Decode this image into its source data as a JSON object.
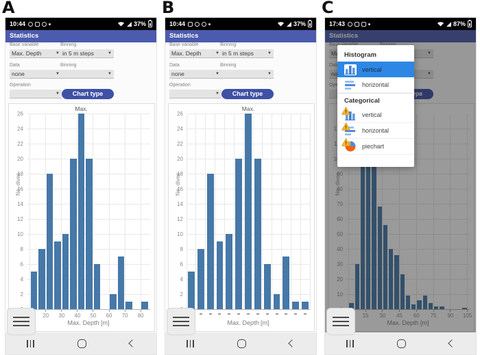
{
  "colors": {
    "header": "#4c5bad",
    "button": "#3f51a5",
    "bar": "#4678a8",
    "popup_highlight": "#2e87e4",
    "statusbar_bg": "#000000",
    "navbar_bg": "#ececec"
  },
  "panels": [
    {
      "letter": "A",
      "status": {
        "time": "10:44",
        "battery": "37%"
      },
      "app_title": "Statistics",
      "form": {
        "base_variable_label": "Base variable",
        "base_variable_value": "Max. Depth",
        "binning1_label": "Binning",
        "binning1_value": "in 5 m steps",
        "data_label": "Data",
        "data_value": "none",
        "binning2_label": "Binning",
        "binning2_value": "",
        "operation_label": "Operation",
        "operation_value": "",
        "chart_type_button": "Chart type"
      }
    },
    {
      "letter": "B",
      "status": {
        "time": "10:44",
        "battery": "37%"
      },
      "app_title": "Statistics",
      "form": {
        "base_variable_label": "Base variable",
        "base_variable_value": "Max. Depth",
        "binning1_label": "Binning",
        "binning1_value": "in 5 m steps",
        "data_label": "Data",
        "data_value": "none",
        "binning2_label": "Binning",
        "binning2_value": "",
        "operation_label": "Operation",
        "operation_value": "",
        "chart_type_button": "Chart type"
      }
    },
    {
      "letter": "C",
      "status": {
        "time": "17:43",
        "battery": "87%"
      },
      "app_title": "Statistics",
      "form": {
        "base_variable_label": "Base variable",
        "base_variable_value": "Max. Depth",
        "binning1_label": "Binning",
        "binning1_value": "",
        "data_label": "Data",
        "data_value": "none",
        "binning2_label": "Binning",
        "binning2_value": "",
        "operation_label": "Operation",
        "operation_value": "",
        "chart_type_button": "Chart type"
      }
    }
  ],
  "chart_data": [
    {
      "type": "bar",
      "mode": "histogram",
      "title": "",
      "xlabel": "Max. Depth [m]",
      "ylabel": "No. dives",
      "bin_start": 10,
      "bin_width": 5,
      "values": [
        5,
        8,
        18,
        9,
        10,
        20,
        26,
        20,
        6,
        0,
        2,
        7,
        1,
        0,
        1
      ],
      "annotation": {
        "text": "Max.",
        "bar_index": 6
      },
      "xticks": [
        10,
        20,
        30,
        40,
        50,
        60,
        70,
        80
      ],
      "yticks_step": 2,
      "yticks_max": 26,
      "ylim": [
        0,
        26
      ],
      "xlim": [
        8,
        86
      ],
      "grid": true,
      "bars_interactable": true
    },
    {
      "type": "bar",
      "mode": "categorical",
      "title": "",
      "xlabel": "Max. Depth [m]",
      "ylabel": "No. dives",
      "values": [
        5,
        8,
        18,
        9,
        10,
        20,
        26,
        20,
        6,
        2,
        7,
        1,
        1
      ],
      "annotation": {
        "text": "Max.",
        "bar_index": 6
      },
      "x_tick_style": "dash",
      "yticks_step": 2,
      "yticks_max": 26,
      "ylim": [
        0,
        26
      ],
      "grid": true,
      "bars_interactable": true
    },
    {
      "type": "bar",
      "mode": "histogram",
      "title": "",
      "xlabel": "Max. Depth [m]",
      "ylabel": "No. dives",
      "bin_start": 0,
      "bin_width": 5,
      "values": [
        4,
        30,
        112,
        128,
        120,
        68,
        56,
        40,
        36,
        23,
        9,
        3,
        6,
        9,
        4,
        2,
        2,
        0,
        0,
        0,
        1
      ],
      "values_note": "tops of 10-25 m bins hidden behind popup; heights estimated (>=94)",
      "xticks": [
        0,
        15,
        30,
        45,
        60,
        75,
        90,
        105
      ],
      "yticks_step": 10,
      "yticks_max": 120,
      "ylim": [
        0,
        130
      ],
      "xlim": [
        -2,
        107
      ],
      "grid": true,
      "dimmed": true,
      "bars_interactable": false
    }
  ],
  "popup": {
    "sections": [
      {
        "title": "Histogram",
        "items": [
          {
            "label": "vertical",
            "icon": "histogram-vertical-icon",
            "selected": true,
            "warning": false
          },
          {
            "label": "horizontal",
            "icon": "histogram-horizontal-icon",
            "selected": false,
            "warning": false
          }
        ]
      },
      {
        "title": "Categorical",
        "items": [
          {
            "label": "vertical",
            "icon": "categorical-vertical-icon",
            "selected": false,
            "warning": true
          },
          {
            "label": "horizontal",
            "icon": "categorical-horizontal-icon",
            "selected": false,
            "warning": true
          },
          {
            "label": "piechart",
            "icon": "categorical-piechart-icon",
            "selected": false,
            "warning": true
          }
        ]
      }
    ]
  },
  "navbar": {
    "icons": [
      "recents-icon",
      "home-icon",
      "back-icon"
    ]
  }
}
